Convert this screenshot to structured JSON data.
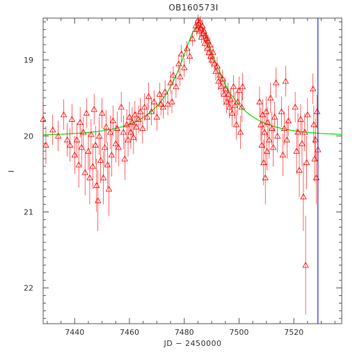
{
  "chart_data": {
    "type": "scatter",
    "title": "OB160573I",
    "xlabel": "JD − 2450000",
    "ylabel": "I",
    "xlim": [
      7428.5,
      7537.5
    ],
    "ylim": [
      22.47,
      18.45
    ],
    "y_inverted": true,
    "xticks": [
      7440,
      7460,
      7480,
      7500,
      7520
    ],
    "yticks": [
      19,
      20,
      21,
      22
    ],
    "grid": false,
    "marker": "open-triangle",
    "colors": {
      "points": "#ff0000",
      "model": "#00e000",
      "marker_line": "#0000ff",
      "axes": "#555555"
    },
    "vertical_line_x": 7528.8,
    "model_curve": {
      "type": "microlensing",
      "t0": 7485.2,
      "peak_mag": 18.55,
      "baseline_mag": 20.0
    },
    "series": [
      {
        "points": [
          [
            7428.5,
            19.78,
            0.2
          ],
          [
            7429.5,
            20.12,
            0.25
          ],
          [
            7432.0,
            19.92,
            0.2
          ],
          [
            7434.0,
            20.0,
            0.2
          ],
          [
            7436.0,
            19.72,
            0.2
          ],
          [
            7437.3,
            20.05,
            0.22
          ],
          [
            7438.3,
            20.12,
            0.22
          ],
          [
            7439.0,
            19.78,
            0.2
          ],
          [
            7440.0,
            20.25,
            0.25
          ],
          [
            7440.8,
            20.05,
            0.22
          ],
          [
            7441.5,
            20.38,
            0.3
          ],
          [
            7442.0,
            19.82,
            0.2
          ],
          [
            7442.5,
            20.15,
            0.25
          ],
          [
            7443.2,
            19.95,
            0.2
          ],
          [
            7443.8,
            20.48,
            0.3
          ],
          [
            7444.3,
            19.7,
            0.2
          ],
          [
            7445.0,
            20.2,
            0.25
          ],
          [
            7445.5,
            20.55,
            0.35
          ],
          [
            7446.0,
            19.98,
            0.2
          ],
          [
            7446.6,
            20.4,
            0.3
          ],
          [
            7447.1,
            19.65,
            0.2
          ],
          [
            7447.6,
            20.12,
            0.25
          ],
          [
            7448.0,
            20.65,
            0.35
          ],
          [
            7448.5,
            20.85,
            0.4
          ],
          [
            7449.0,
            20.0,
            0.25
          ],
          [
            7449.5,
            20.32,
            0.3
          ],
          [
            7450.0,
            19.7,
            0.2
          ],
          [
            7450.5,
            20.55,
            0.35
          ],
          [
            7451.0,
            20.15,
            0.25
          ],
          [
            7451.5,
            19.88,
            0.22
          ],
          [
            7452.0,
            20.38,
            0.3
          ],
          [
            7452.5,
            20.7,
            0.35
          ],
          [
            7453.0,
            19.95,
            0.22
          ],
          [
            7453.5,
            20.25,
            0.28
          ],
          [
            7454.0,
            19.8,
            0.2
          ],
          [
            7455.0,
            20.1,
            0.25
          ],
          [
            7455.5,
            19.9,
            0.22
          ],
          [
            7456.0,
            20.15,
            0.25
          ],
          [
            7457.0,
            19.62,
            0.2
          ],
          [
            7457.8,
            19.95,
            0.22
          ],
          [
            7458.3,
            20.3,
            0.28
          ],
          [
            7459.0,
            19.85,
            0.2
          ],
          [
            7459.5,
            20.05,
            0.22
          ],
          [
            7460.0,
            19.75,
            0.2
          ],
          [
            7460.5,
            19.95,
            0.22
          ],
          [
            7461.0,
            19.82,
            0.2
          ],
          [
            7461.5,
            20.02,
            0.22
          ],
          [
            7462.0,
            19.72,
            0.18
          ],
          [
            7462.5,
            19.88,
            0.2
          ],
          [
            7463.3,
            19.78,
            0.18
          ],
          [
            7464.0,
            19.68,
            0.18
          ],
          [
            7464.8,
            19.9,
            0.2
          ],
          [
            7465.5,
            19.62,
            0.18
          ],
          [
            7466.5,
            19.75,
            0.18
          ],
          [
            7467.0,
            19.48,
            0.18
          ],
          [
            7468.0,
            19.68,
            0.18
          ],
          [
            7469.0,
            19.55,
            0.15
          ],
          [
            7470.0,
            19.75,
            0.18
          ],
          [
            7471.0,
            19.45,
            0.15
          ],
          [
            7471.5,
            19.58,
            0.15
          ],
          [
            7472.3,
            19.62,
            0.15
          ],
          [
            7473.0,
            19.42,
            0.15
          ],
          [
            7474.0,
            19.58,
            0.15
          ],
          [
            7475.0,
            19.3,
            0.15
          ],
          [
            7475.5,
            19.55,
            0.15
          ],
          [
            7476.0,
            19.2,
            0.12
          ],
          [
            7477.0,
            19.35,
            0.15
          ],
          [
            7478.0,
            19.05,
            0.12
          ],
          [
            7478.5,
            19.22,
            0.12
          ],
          [
            7479.0,
            18.92,
            0.12
          ],
          [
            7480.0,
            19.1,
            0.12
          ],
          [
            7481.0,
            18.85,
            0.1
          ],
          [
            7482.0,
            18.95,
            0.1
          ],
          [
            7483.0,
            18.72,
            0.1
          ],
          [
            7484.2,
            18.55,
            0.08
          ],
          [
            7484.6,
            18.6,
            0.08
          ],
          [
            7485.0,
            18.48,
            0.08
          ],
          [
            7485.2,
            18.52,
            0.08
          ],
          [
            7485.5,
            18.62,
            0.08
          ],
          [
            7485.8,
            18.5,
            0.08
          ],
          [
            7486.0,
            18.58,
            0.08
          ],
          [
            7486.3,
            18.7,
            0.08
          ],
          [
            7486.6,
            18.55,
            0.08
          ],
          [
            7486.9,
            18.65,
            0.08
          ],
          [
            7487.2,
            18.62,
            0.08
          ],
          [
            7487.5,
            18.78,
            0.1
          ],
          [
            7487.8,
            18.68,
            0.08
          ],
          [
            7488.1,
            18.72,
            0.08
          ],
          [
            7488.4,
            18.85,
            0.1
          ],
          [
            7488.7,
            18.75,
            0.08
          ],
          [
            7489.0,
            18.9,
            0.1
          ],
          [
            7489.3,
            18.8,
            0.1
          ],
          [
            7489.6,
            18.95,
            0.1
          ],
          [
            7490.0,
            19.0,
            0.1
          ],
          [
            7490.5,
            18.9,
            0.1
          ],
          [
            7491.0,
            19.05,
            0.1
          ],
          [
            7491.5,
            19.15,
            0.12
          ],
          [
            7492.0,
            19.08,
            0.12
          ],
          [
            7492.5,
            19.28,
            0.12
          ],
          [
            7493.0,
            19.2,
            0.12
          ],
          [
            7493.5,
            19.35,
            0.12
          ],
          [
            7494.0,
            19.25,
            0.12
          ],
          [
            7494.5,
            19.45,
            0.15
          ],
          [
            7495.0,
            19.38,
            0.15
          ],
          [
            7495.5,
            19.55,
            0.15
          ],
          [
            7496.0,
            19.45,
            0.15
          ],
          [
            7496.5,
            19.62,
            0.15
          ],
          [
            7497.0,
            19.52,
            0.15
          ],
          [
            7497.5,
            19.7,
            0.18
          ],
          [
            7498.0,
            19.35,
            0.15
          ],
          [
            7498.5,
            19.6,
            0.18
          ],
          [
            7499.0,
            19.85,
            0.2
          ],
          [
            7499.5,
            19.55,
            0.18
          ],
          [
            7500.0,
            19.4,
            0.18
          ],
          [
            7500.5,
            19.95,
            0.22
          ],
          [
            7501.0,
            19.62,
            0.2
          ],
          [
            7501.3,
            19.35,
            0.18
          ],
          [
            7507.5,
            19.55,
            0.2
          ],
          [
            7508.0,
            19.85,
            0.22
          ],
          [
            7508.3,
            20.12,
            0.25
          ],
          [
            7508.6,
            19.72,
            0.2
          ],
          [
            7509.0,
            20.35,
            0.3
          ],
          [
            7509.3,
            19.95,
            0.22
          ],
          [
            7509.6,
            20.55,
            0.35
          ],
          [
            7509.9,
            19.68,
            0.2
          ],
          [
            7510.2,
            20.2,
            0.25
          ],
          [
            7510.5,
            19.82,
            0.2
          ],
          [
            7511.0,
            20.05,
            0.25
          ],
          [
            7511.5,
            19.5,
            0.2
          ],
          [
            7512.0,
            19.9,
            0.22
          ],
          [
            7512.5,
            20.15,
            0.25
          ],
          [
            7513.0,
            19.75,
            0.2
          ],
          [
            7513.5,
            19.3,
            0.2
          ],
          [
            7514.0,
            20.0,
            0.22
          ],
          [
            7515.5,
            19.68,
            0.2
          ],
          [
            7516.0,
            20.25,
            0.28
          ],
          [
            7516.5,
            19.9,
            0.22
          ],
          [
            7517.0,
            19.28,
            0.2
          ],
          [
            7517.5,
            20.05,
            0.25
          ],
          [
            7518.0,
            19.8,
            0.2
          ],
          [
            7520.5,
            19.62,
            0.2
          ],
          [
            7521.0,
            20.2,
            0.3
          ],
          [
            7521.5,
            19.95,
            0.25
          ],
          [
            7522.0,
            20.45,
            0.35
          ],
          [
            7522.5,
            19.78,
            0.2
          ],
          [
            7523.0,
            20.1,
            0.3
          ],
          [
            7523.5,
            20.8,
            0.45
          ],
          [
            7524.0,
            19.95,
            0.25
          ],
          [
            7524.3,
            21.7,
            0.65
          ],
          [
            7524.7,
            20.35,
            0.35
          ],
          [
            7525.0,
            19.72,
            0.22
          ],
          [
            7527.0,
            19.38,
            0.2
          ],
          [
            7527.3,
            19.85,
            0.25
          ],
          [
            7527.6,
            20.3,
            0.3
          ],
          [
            7527.9,
            20.05,
            0.28
          ],
          [
            7528.2,
            20.55,
            0.35
          ],
          [
            7528.5,
            19.68,
            0.22
          ],
          [
            7528.8,
            20.18,
            0.28
          ]
        ]
      }
    ]
  }
}
